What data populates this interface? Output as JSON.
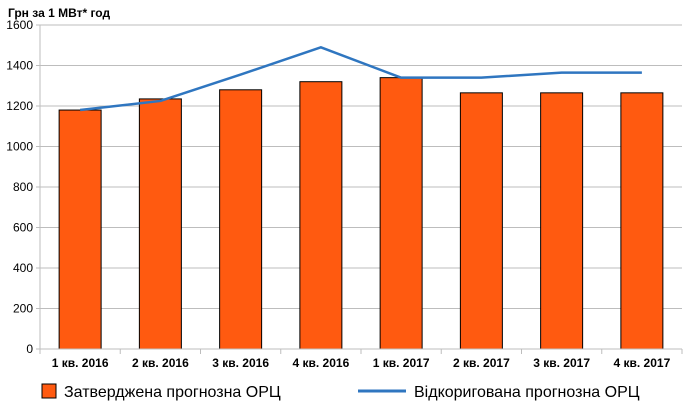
{
  "chart_data": {
    "type": "bar",
    "title": "",
    "ylabel": "Грн за 1 МВт* год",
    "xlabel": "",
    "ylim": [
      0,
      1600
    ],
    "yticks": [
      0,
      200,
      400,
      600,
      800,
      1000,
      1200,
      1400,
      1600
    ],
    "grid": true,
    "legend_position": "bottom",
    "categories": [
      "1 кв. 2016",
      "2 кв. 2016",
      "3 кв. 2016",
      "4 кв. 2016",
      "1 кв. 2017",
      "2 кв. 2017",
      "3 кв. 2017",
      "4 кв. 2017"
    ],
    "series": [
      {
        "name": "Затверджена прогнозна ОРЦ",
        "kind": "bar",
        "color": "#ff5a10",
        "values": [
          1180,
          1235,
          1280,
          1320,
          1340,
          1265,
          1265,
          1265
        ]
      },
      {
        "name": "Відкоригована прогнозна ОРЦ",
        "kind": "line",
        "color": "#2f76c0",
        "values": [
          1180,
          1225,
          1355,
          1490,
          1340,
          1340,
          1365,
          1365
        ]
      }
    ]
  }
}
